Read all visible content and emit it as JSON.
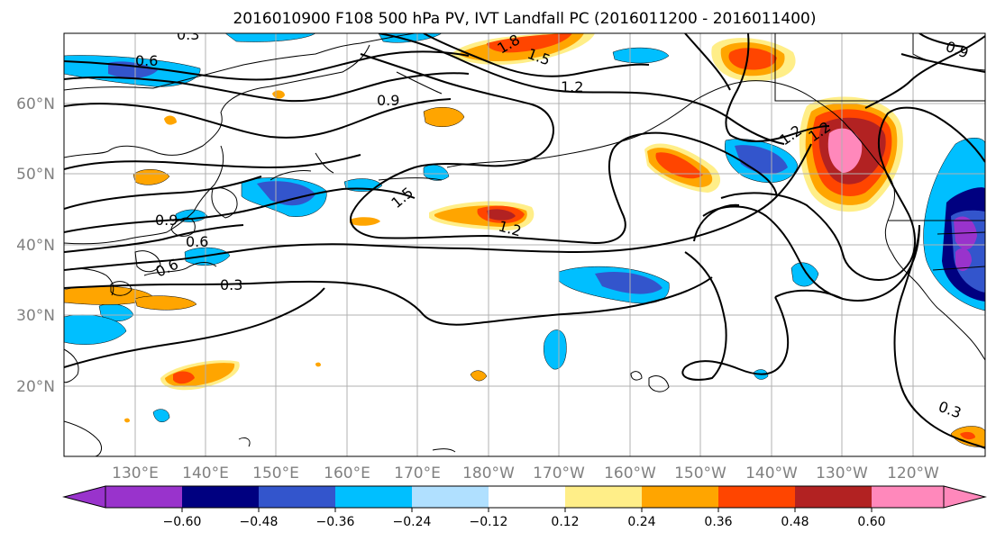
{
  "title": "2016010900 F108 500 hPa PV, IVT Landfall PC (2016011200 - 2016011400)",
  "lat_labels": [
    "60°N",
    "50°N",
    "40°N",
    "30°N",
    "20°N"
  ],
  "lon_labels": [
    "130°E",
    "140°E",
    "150°E",
    "160°E",
    "170°E",
    "180°W",
    "170°W",
    "160°W",
    "150°W",
    "140°W",
    "130°W",
    "120°W"
  ],
  "colorbar": {
    "colors": [
      "#9933cc",
      "#000080",
      "#3355cc",
      "#00bfff",
      "#b0e0ff",
      "#ffffff",
      "#ffee88",
      "#ffa500",
      "#ff4500",
      "#b22222",
      "#ff88bb"
    ],
    "ticks": [
      "−0.60",
      "−0.48",
      "−0.36",
      "−0.24",
      "−0.12",
      "0.12",
      "0.24",
      "0.36",
      "0.48",
      "0.60"
    ]
  },
  "contour_labels": [
    "0.3",
    "0.6",
    "0.9",
    "1.2",
    "1.5",
    "1.8",
    "0.9",
    "0.6",
    "0.6",
    "0.3",
    "1.5",
    "1.2",
    "1.2",
    "1.2",
    "0.9",
    "0.3"
  ],
  "colors": {
    "grid": "#b0b0b0",
    "contour": "#000000",
    "label_gray": "#808080"
  }
}
